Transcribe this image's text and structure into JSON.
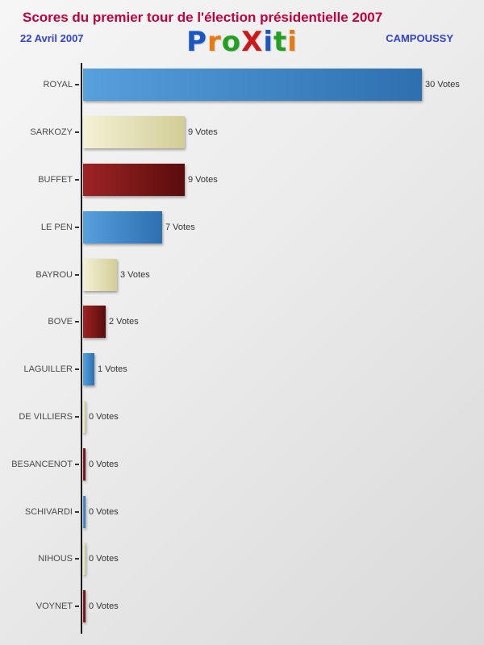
{
  "header": {
    "title": "Scores du premier tour de l'élection présidentielle 2007",
    "date": "22 Avril 2007",
    "location": "CAMPOUSSY",
    "logo_letters": [
      {
        "ch": "P",
        "color": "#1a56c4"
      },
      {
        "ch": "r",
        "color": "#e87a10"
      },
      {
        "ch": "o",
        "color": "#22a022"
      },
      {
        "ch": "X",
        "color": "#cc1818"
      },
      {
        "ch": "i",
        "color": "#1a56c4"
      },
      {
        "ch": "t",
        "color": "#22a022"
      },
      {
        "ch": "i",
        "color": "#e87a10"
      }
    ]
  },
  "chart_data": {
    "type": "bar",
    "orientation": "horizontal",
    "title": "Scores du premier tour de l'élection présidentielle 2007",
    "categories": [
      "ROYAL",
      "SARKOZY",
      "BUFFET",
      "LE PEN",
      "BAYROU",
      "BOVE",
      "LAGUILLER",
      "DE VILLIERS",
      "BESANCENOT",
      "SCHIVARDI",
      "NIHOUS",
      "VOYNET"
    ],
    "values": [
      30,
      9,
      9,
      7,
      3,
      2,
      1,
      0,
      0,
      0,
      0,
      0
    ],
    "value_labels": [
      "30 Votes",
      "9 Votes",
      "9 Votes",
      "7 Votes",
      "3 Votes",
      "2 Votes",
      "1 Votes",
      "0 Votes",
      "0 Votes",
      "0 Votes",
      "0 Votes",
      "0 Votes"
    ],
    "bar_colors": [
      "blue",
      "cream",
      "darkred",
      "blue",
      "cream",
      "darkred",
      "blue",
      "cream",
      "darkred",
      "blue",
      "cream",
      "darkred"
    ],
    "xlim": [
      0,
      30
    ],
    "unit": "Votes",
    "legend": "none",
    "grid": "off"
  },
  "colors": {
    "title": "#c4003c",
    "subtitle": "#3344cc",
    "axis": "#1a1a1a",
    "category_label": "#4a4a4a",
    "blue_bar": "#3f87c7",
    "cream_bar": "#e3dfb4",
    "darkred_bar": "#7a1616"
  }
}
